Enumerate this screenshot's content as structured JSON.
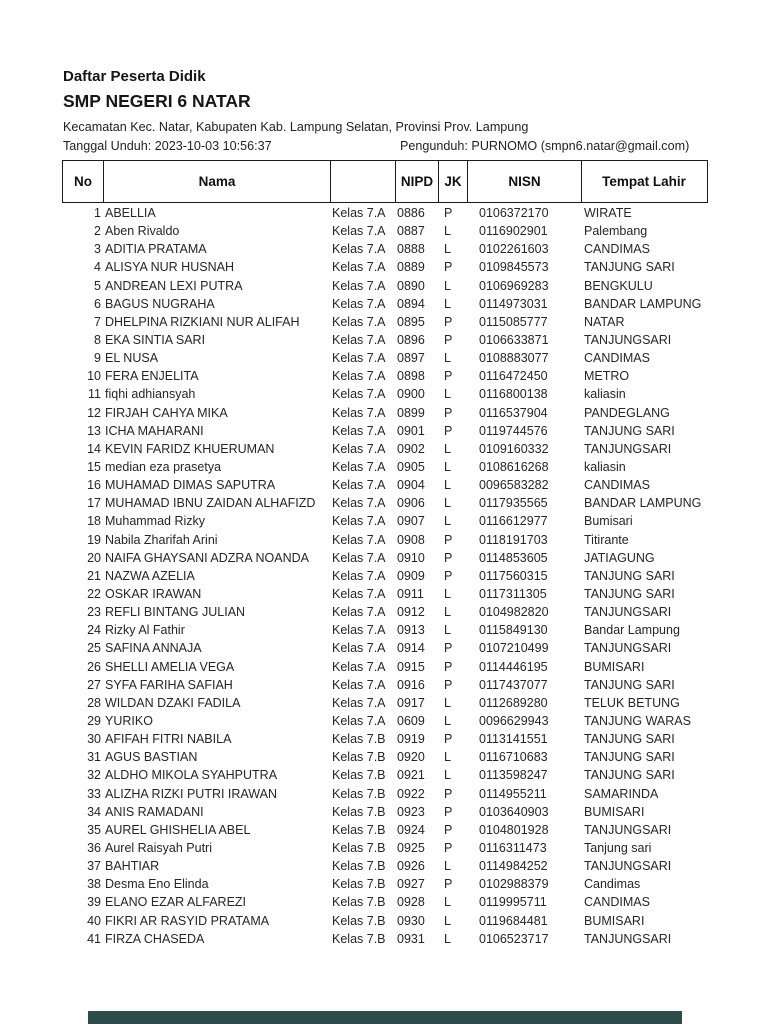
{
  "page": {
    "title": "Daftar Peserta Didik",
    "school": "SMP NEGERI 6 NATAR",
    "region_line": "Kecamatan Kec. Natar, Kabupaten Kab. Lampung Selatan, Provinsi Prov. Lampung",
    "download_line": "Tanggal Unduh: 2023-10-03 10:56:37",
    "downloader_line": "Pengunduh: PURNOMO (smpn6.natar@gmail.com)"
  },
  "table": {
    "headers": [
      "No",
      "Nama",
      "",
      "NIPD",
      "JK",
      "NISN",
      "Tempat Lahir"
    ],
    "rows": [
      [
        "1",
        "ABELLIA",
        "Kelas 7.A",
        "0886",
        "P",
        "0106372170",
        "WIRATE"
      ],
      [
        "2",
        "Aben Rivaldo",
        "Kelas 7.A",
        "0887",
        "L",
        "0116902901",
        "Palembang"
      ],
      [
        "3",
        "ADITIA PRATAMA",
        "Kelas 7.A",
        "0888",
        "L",
        "0102261603",
        "CANDIMAS"
      ],
      [
        "4",
        "ALISYA NUR HUSNAH",
        "Kelas 7.A",
        "0889",
        "P",
        "0109845573",
        "TANJUNG SARI"
      ],
      [
        "5",
        "ANDREAN LEXI PUTRA",
        "Kelas 7.A",
        "0890",
        "L",
        "0106969283",
        "BENGKULU"
      ],
      [
        "6",
        "BAGUS NUGRAHA",
        "Kelas 7.A",
        "0894",
        "L",
        "0114973031",
        "BANDAR LAMPUNG"
      ],
      [
        "7",
        "DHELPINA RIZKIANI NUR ALIFAH",
        "Kelas 7.A",
        "0895",
        "P",
        "0115085777",
        "NATAR"
      ],
      [
        "8",
        "EKA SINTIA SARI",
        "Kelas 7.A",
        "0896",
        "P",
        "0106633871",
        "TANJUNGSARI"
      ],
      [
        "9",
        "EL NUSA",
        "Kelas 7.A",
        "0897",
        "L",
        "0108883077",
        "CANDIMAS"
      ],
      [
        "10",
        "FERA ENJELITA",
        "Kelas 7.A",
        "0898",
        "P",
        "0116472450",
        "METRO"
      ],
      [
        "11",
        "fiqhi adhiansyah",
        "Kelas 7.A",
        "0900",
        "L",
        "0116800138",
        "kaliasin"
      ],
      [
        "12",
        "FIRJAH CAHYA MIKA",
        "Kelas 7.A",
        "0899",
        "P",
        "0116537904",
        "PANDEGLANG"
      ],
      [
        "13",
        "ICHA MAHARANI",
        "Kelas 7.A",
        "0901",
        "P",
        "0119744576",
        "TANJUNG SARI"
      ],
      [
        "14",
        "KEVIN FARIDZ KHUERUMAN",
        "Kelas 7.A",
        "0902",
        "L",
        "0109160332",
        "TANJUNGSARI"
      ],
      [
        "15",
        "median eza prasetya",
        "Kelas 7.A",
        "0905",
        "L",
        "0108616268",
        "kaliasin"
      ],
      [
        "16",
        "MUHAMAD DIMAS SAPUTRA",
        "Kelas 7.A",
        "0904",
        "L",
        "0096583282",
        "CANDIMAS"
      ],
      [
        "17",
        "MUHAMAD IBNU ZAIDAN ALHAFIZD",
        "Kelas 7.A",
        "0906",
        "L",
        "0117935565",
        "BANDAR LAMPUNG"
      ],
      [
        "18",
        "Muhammad Rizky",
        "Kelas 7.A",
        "0907",
        "L",
        "0116612977",
        "Bumisari"
      ],
      [
        "19",
        "Nabila Zharifah Arini",
        "Kelas 7.A",
        "0908",
        "P",
        "0118191703",
        "Titirante"
      ],
      [
        "20",
        "NAIFA GHAYSANI ADZRA NOANDA",
        "Kelas 7.A",
        "0910",
        "P",
        "0114853605",
        "JATIAGUNG"
      ],
      [
        "21",
        "NAZWA AZELIA",
        "Kelas 7.A",
        "0909",
        "P",
        "0117560315",
        "TANJUNG SARI"
      ],
      [
        "22",
        "OSKAR IRAWAN",
        "Kelas 7.A",
        "0911",
        "L",
        "0117311305",
        "TANJUNG SARI"
      ],
      [
        "23",
        "REFLI BINTANG JULIAN",
        "Kelas 7.A",
        "0912",
        "L",
        "0104982820",
        "TANJUNGSARI"
      ],
      [
        "24",
        "Rizky Al Fathir",
        "Kelas 7.A",
        "0913",
        "L",
        "0115849130",
        "Bandar Lampung"
      ],
      [
        "25",
        "SAFINA ANNAJA",
        "Kelas 7.A",
        "0914",
        "P",
        "0107210499",
        "TANJUNGSARI"
      ],
      [
        "26",
        "SHELLI AMELIA VEGA",
        "Kelas 7.A",
        "0915",
        "P",
        "0114446195",
        "BUMISARI"
      ],
      [
        "27",
        "SYFA FARIHA SAFIAH",
        "Kelas 7.A",
        "0916",
        "P",
        "0117437077",
        "TANJUNG SARI"
      ],
      [
        "28",
        "WILDAN DZAKI FADILA",
        "Kelas 7.A",
        "0917",
        "L",
        "0112689280",
        "TELUK BETUNG"
      ],
      [
        "29",
        "YURIKO",
        "Kelas 7.A",
        "0609",
        "L",
        "0096629943",
        "TANJUNG WARAS"
      ],
      [
        "30",
        "AFIFAH FITRI NABILA",
        "Kelas 7.B",
        "0919",
        "P",
        "0113141551",
        "TANJUNG SARI"
      ],
      [
        "31",
        "AGUS BASTIAN",
        "Kelas 7.B",
        "0920",
        "L",
        "0116710683",
        "TANJUNG SARI"
      ],
      [
        "32",
        "ALDHO MIKOLA SYAHPUTRA",
        "Kelas 7.B",
        "0921",
        "L",
        "0113598247",
        "TANJUNG SARI"
      ],
      [
        "33",
        "ALIZHA RIZKI PUTRI IRAWAN",
        "Kelas 7.B",
        "0922",
        "P",
        "0114955211",
        "SAMARINDA"
      ],
      [
        "34",
        "ANIS RAMADANI",
        "Kelas 7.B",
        "0923",
        "P",
        "0103640903",
        "BUMISARI"
      ],
      [
        "35",
        "AUREL GHISHELIA ABEL",
        "Kelas 7.B",
        "0924",
        "P",
        "0104801928",
        "TANJUNGSARI"
      ],
      [
        "36",
        "Aurel Raisyah Putri",
        "Kelas 7.B",
        "0925",
        "P",
        "0116311473",
        "Tanjung sari"
      ],
      [
        "37",
        "BAHTIAR",
        "Kelas 7.B",
        "0926",
        "L",
        "0114984252",
        "TANJUNGSARI"
      ],
      [
        "38",
        "Desma Eno Elinda",
        "Kelas 7.B",
        "0927",
        "P",
        "0102988379",
        "Candimas"
      ],
      [
        "39",
        "ELANO EZAR ALFAREZI",
        "Kelas 7.B",
        "0928",
        "L",
        "0119995711",
        "CANDIMAS"
      ],
      [
        "40",
        "FIKRI AR RASYID PRATAMA",
        "Kelas 7.B",
        "0930",
        "L",
        "0119684481",
        "BUMISARI"
      ],
      [
        "41",
        "FIRZA CHASEDA",
        "Kelas 7.B",
        "0931",
        "L",
        "0106523717",
        "TANJUNGSARI"
      ]
    ]
  },
  "colors": {
    "text": "#262626",
    "border": "#1c1c1c",
    "next_page_edge": "#2e4d4a"
  }
}
